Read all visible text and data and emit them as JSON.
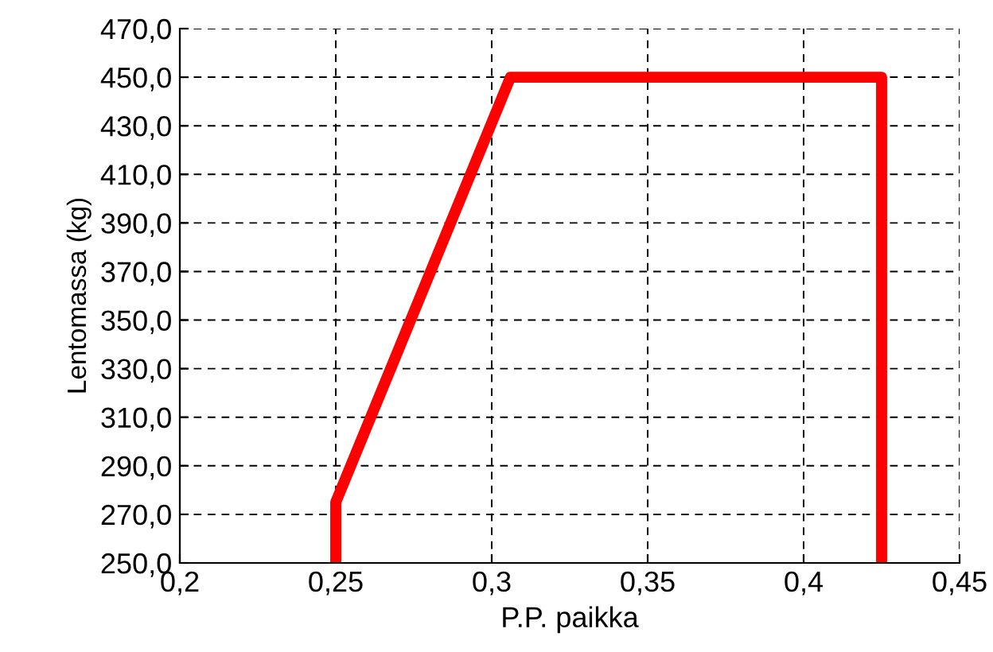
{
  "chart_data": {
    "type": "line",
    "xlabel": "P.P. paikka",
    "ylabel": "Lentomassa (kg)",
    "x": [
      0.25,
      0.25,
      0.306,
      0.425,
      0.425
    ],
    "series": [
      {
        "color": "#ff0000",
        "values": [
          250,
          275,
          450,
          450,
          250
        ]
      }
    ],
    "xlim": [
      0.2,
      0.45
    ],
    "ylim": [
      250,
      470
    ],
    "xticks": [
      {
        "value": 0.2,
        "label": "0,2"
      },
      {
        "value": 0.25,
        "label": "0,25"
      },
      {
        "value": 0.3,
        "label": "0,3"
      },
      {
        "value": 0.35,
        "label": "0,35"
      },
      {
        "value": 0.4,
        "label": "0,4"
      },
      {
        "value": 0.45,
        "label": "0,45"
      }
    ],
    "yticks": [
      {
        "value": 250,
        "label": "250,0"
      },
      {
        "value": 270,
        "label": "270,0"
      },
      {
        "value": 290,
        "label": "290,0"
      },
      {
        "value": 310,
        "label": "310,0"
      },
      {
        "value": 330,
        "label": "330,0"
      },
      {
        "value": 350,
        "label": "350,0"
      },
      {
        "value": 370,
        "label": "370,0"
      },
      {
        "value": 390,
        "label": "390,0"
      },
      {
        "value": 410,
        "label": "410,0"
      },
      {
        "value": 430,
        "label": "430,0"
      },
      {
        "value": 450,
        "label": "450,0"
      },
      {
        "value": 470,
        "label": "470,0"
      }
    ],
    "grid": true,
    "line_style": "solid"
  }
}
